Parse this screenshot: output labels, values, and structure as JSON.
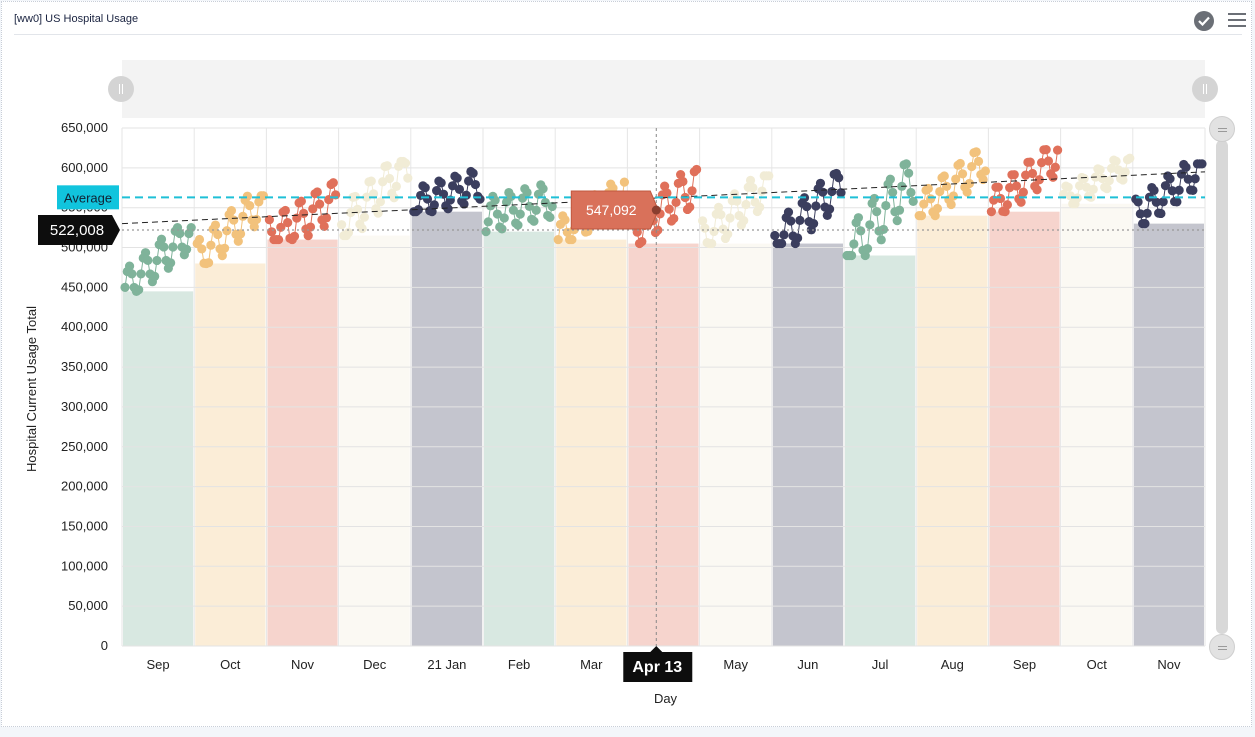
{
  "panel": {
    "title": "[ww0] US Hospital Usage"
  },
  "icons": {
    "check": "check-circle-icon",
    "menu": "hamburger-menu-icon"
  },
  "chart_data": {
    "type": "scatter",
    "title": "",
    "xlabel": "Day",
    "ylabel": "Hospital Current Usage Total",
    "ylim": [
      0,
      650000
    ],
    "y_ticks": [
      "0",
      "50,000",
      "100,000",
      "150,000",
      "200,000",
      "250,000",
      "300,000",
      "350,000",
      "400,000",
      "450,000",
      "500,000",
      "550,000",
      "600,000",
      "650,000"
    ],
    "x_ticks": [
      "Sep",
      "Oct",
      "Nov",
      "Dec",
      "21 Jan",
      "Feb",
      "Mar",
      "Apr",
      "May",
      "Jun",
      "Jul",
      "Aug",
      "Sep",
      "Oct",
      "Nov"
    ],
    "month_colors": [
      "#7fb39a",
      "#f2c27c",
      "#e0705a",
      "#f1ecd6",
      "#3b3e5e"
    ],
    "months": [
      {
        "label": "Sep",
        "start": 450000,
        "end": 520000,
        "min": 445000,
        "max": 525000
      },
      {
        "label": "Oct",
        "start": 485000,
        "end": 560000,
        "min": 480000,
        "max": 565000
      },
      {
        "label": "Nov",
        "start": 512000,
        "end": 560000,
        "min": 510000,
        "max": 600000
      },
      {
        "label": "Dec",
        "start": 525000,
        "end": 605000,
        "min": 515000,
        "max": 608000
      },
      {
        "label": "21 Jan",
        "start": 555000,
        "end": 580000,
        "min": 545000,
        "max": 615000
      },
      {
        "label": "Feb",
        "start": 540000,
        "end": 560000,
        "min": 520000,
        "max": 600000
      },
      {
        "label": "Mar",
        "start": 515000,
        "end": 570000,
        "min": 510000,
        "max": 585000
      },
      {
        "label": "Apr",
        "start": 520000,
        "end": 580000,
        "min": 505000,
        "max": 598000
      },
      {
        "label": "May",
        "start": 510000,
        "end": 580000,
        "min": 505000,
        "max": 590000
      },
      {
        "label": "Jun",
        "start": 505000,
        "end": 580000,
        "min": 505000,
        "max": 593000
      },
      {
        "label": "Jul",
        "start": 490000,
        "end": 590000,
        "min": 490000,
        "max": 605000
      },
      {
        "label": "Aug",
        "start": 545000,
        "end": 610000,
        "min": 540000,
        "max": 620000
      },
      {
        "label": "Sep",
        "start": 550000,
        "end": 615000,
        "min": 545000,
        "max": 625000
      },
      {
        "label": "Oct",
        "start": 560000,
        "end": 605000,
        "min": 555000,
        "max": 612000
      },
      {
        "label": "Nov",
        "start": 540000,
        "end": 600000,
        "min": 530000,
        "max": 605000
      }
    ],
    "average": {
      "label": "Average",
      "value": 563000
    },
    "reference_line": {
      "value": 522008,
      "label": "522,008"
    },
    "trendline": {
      "start": 530000,
      "end": 595000
    },
    "crosshair": {
      "x_label": "Apr 13",
      "y_value": 547092,
      "value_label": "547,092"
    }
  }
}
